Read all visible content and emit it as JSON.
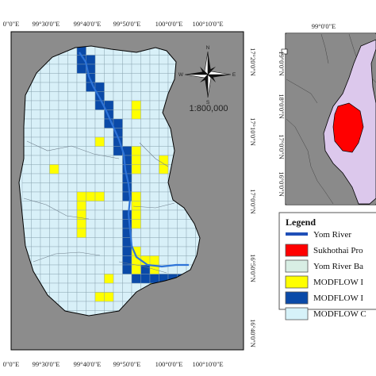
{
  "main_map": {
    "top_ticks": [
      "0\"0\"E",
      "99°30'0\"E",
      "99°40'0\"E",
      "99°50'0\"E",
      "100°0'0\"E",
      "100°10'0\"E"
    ],
    "bottom_ticks": [
      "0\"0\"E",
      "99°30'0\"E",
      "99°40'0\"E",
      "99°50'0\"E",
      "100°0'0\"E",
      "100°10'0\"E"
    ],
    "right_ticks": [
      "17°20'0\"N",
      "17°10'0\"N",
      "17°0'0\"N",
      "16°50'0\"N",
      "16°40'0\"N"
    ],
    "scale_text": "1:800,000",
    "compass": {
      "n": "N",
      "s": "S",
      "e": "E",
      "w": "W"
    }
  },
  "inset_map": {
    "top_ticks": [
      "99°0'0\"E"
    ],
    "left_ticks": [
      "19°0'0\"N",
      "18°0'0\"N",
      "17°0'0\"N",
      "16°0'0\"N"
    ]
  },
  "legend": {
    "title": "Legend",
    "items": [
      {
        "label": "Yom River",
        "symbol": "line",
        "color": "#1f4fb8"
      },
      {
        "label": "Sukhothai Pro",
        "symbol": "box",
        "color": "#ff0000"
      },
      {
        "label": "Yom River Ba",
        "symbol": "box",
        "color": "#d8eee4"
      },
      {
        "label": "MODFLOW I",
        "symbol": "box",
        "color": "#ffff00"
      },
      {
        "label": "MODFLOW I",
        "symbol": "box",
        "color": "#0a4aa8"
      },
      {
        "label": "MODFLOW C",
        "symbol": "box",
        "color": "#d6f2f9"
      }
    ]
  },
  "colors": {
    "background": "#8c8c8c",
    "grid_cell": "#d8f0f8",
    "river_cell": "#0a4aa8",
    "yellow_cell": "#ffff00",
    "river_line": "#2e74d8",
    "inset_land": "#8a8a8a",
    "inset_basin": "#dcc8ec",
    "inset_province": "#ff0000"
  }
}
